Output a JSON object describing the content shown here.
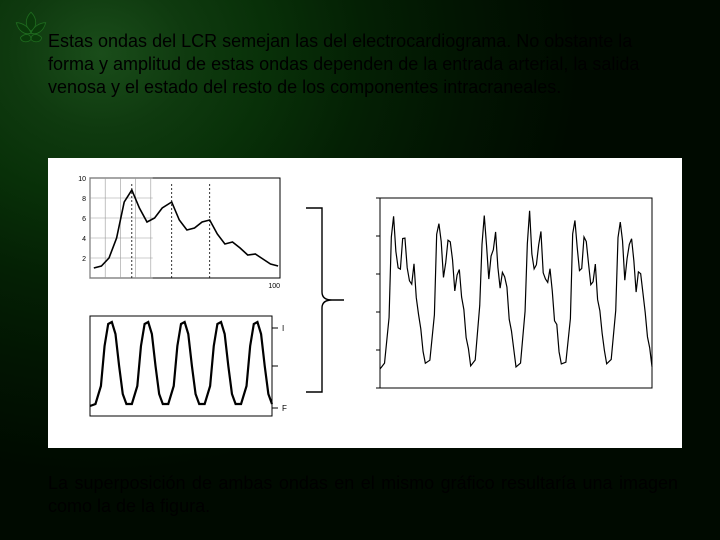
{
  "slide": {
    "background": {
      "gradient_center": "14% 10%",
      "stops": [
        "#1a4d1a",
        "#0f3a0f",
        "#083008",
        "#042004",
        "#021502",
        "#000a00"
      ]
    },
    "bullet_icon": {
      "type": "leaf-ornament",
      "fill": "#0a3a0a",
      "stroke": "#1f6b1f"
    },
    "text_top": "Estas ondas del LCR semejan las del electrocardiograma. No obstante la forma y amplitud de estas ondas dependen de la entrada arterial, la salida venosa y el estado del resto de los componentes intracraneales.",
    "text_bottom": "La superposición de ambas ondas en el mismo gráfico resultaría una imagen como la de la figura.",
    "text_color": "#000000",
    "font_size_pt": 14
  },
  "figure": {
    "background": "#ffffff",
    "stroke": "#000000",
    "grid_color": "#9a9a9a",
    "chart_top_left": {
      "type": "line",
      "description": "single ICP pulse wave with three descending peaks",
      "xlim": [
        0,
        100
      ],
      "ylim": [
        0,
        10
      ],
      "grid_x": [
        0,
        8,
        16,
        24,
        32
      ],
      "grid_y": [
        0,
        2,
        4,
        6,
        8,
        10
      ],
      "axis_labels_y": [
        "2",
        "4",
        "6",
        "8",
        "10"
      ],
      "axis_label_x_end": "100",
      "dashed_markers_x": [
        22,
        43,
        63
      ],
      "series": [
        {
          "color": "#000000",
          "line_width": 1.6,
          "points": [
            [
              2,
              1.0
            ],
            [
              6,
              1.2
            ],
            [
              10,
              2.0
            ],
            [
              14,
              4.0
            ],
            [
              18,
              7.6
            ],
            [
              22,
              8.8
            ],
            [
              26,
              7.0
            ],
            [
              30,
              5.6
            ],
            [
              34,
              6.0
            ],
            [
              38,
              7.0
            ],
            [
              43,
              7.6
            ],
            [
              47,
              5.8
            ],
            [
              51,
              4.8
            ],
            [
              55,
              5.0
            ],
            [
              59,
              5.6
            ],
            [
              63,
              5.8
            ],
            [
              67,
              4.4
            ],
            [
              71,
              3.4
            ],
            [
              75,
              3.6
            ],
            [
              79,
              3.0
            ],
            [
              83,
              2.3
            ],
            [
              87,
              2.4
            ],
            [
              91,
              1.9
            ],
            [
              95,
              1.4
            ],
            [
              99,
              1.2
            ]
          ]
        }
      ]
    },
    "chart_bottom_left": {
      "type": "line",
      "description": "arterial pressure - smooth periodic sinusoid ~5 cycles",
      "xlim": [
        0,
        100
      ],
      "ylim": [
        0,
        10
      ],
      "right_labels": [
        "I",
        "",
        "F"
      ],
      "series": [
        {
          "color": "#000000",
          "line_width": 2.2,
          "points": [
            [
              0,
              1.0
            ],
            [
              3,
              1.2
            ],
            [
              6,
              3.0
            ],
            [
              8,
              7.0
            ],
            [
              10,
              9.2
            ],
            [
              12,
              9.4
            ],
            [
              14,
              8.2
            ],
            [
              16,
              5.0
            ],
            [
              18,
              2.2
            ],
            [
              20,
              1.2
            ],
            [
              23,
              1.2
            ],
            [
              26,
              3.0
            ],
            [
              28,
              7.0
            ],
            [
              30,
              9.2
            ],
            [
              32,
              9.4
            ],
            [
              34,
              8.2
            ],
            [
              36,
              5.0
            ],
            [
              38,
              2.2
            ],
            [
              40,
              1.2
            ],
            [
              43,
              1.2
            ],
            [
              46,
              3.0
            ],
            [
              48,
              7.0
            ],
            [
              50,
              9.2
            ],
            [
              52,
              9.4
            ],
            [
              54,
              8.2
            ],
            [
              56,
              5.0
            ],
            [
              58,
              2.2
            ],
            [
              60,
              1.2
            ],
            [
              63,
              1.2
            ],
            [
              66,
              3.0
            ],
            [
              68,
              7.0
            ],
            [
              70,
              9.2
            ],
            [
              72,
              9.4
            ],
            [
              74,
              8.2
            ],
            [
              76,
              5.0
            ],
            [
              78,
              2.2
            ],
            [
              80,
              1.2
            ],
            [
              83,
              1.2
            ],
            [
              86,
              3.0
            ],
            [
              88,
              7.0
            ],
            [
              90,
              9.2
            ],
            [
              92,
              9.4
            ],
            [
              94,
              8.2
            ],
            [
              96,
              5.0
            ],
            [
              98,
              2.2
            ],
            [
              100,
              1.2
            ]
          ]
        }
      ]
    },
    "chart_right": {
      "type": "line",
      "description": "superposition: repeated ICP-like complex, ~6 cycles, with fine ripple",
      "xlim": [
        0,
        120
      ],
      "ylim": [
        0,
        10
      ],
      "axis_ticks_y": [
        0,
        2,
        4,
        6,
        8,
        10
      ],
      "cycle_template": [
        [
          0,
          1.0
        ],
        [
          2,
          1.4
        ],
        [
          4,
          4.0
        ],
        [
          5,
          7.8
        ],
        [
          6,
          9.0
        ],
        [
          7,
          7.4
        ],
        [
          8,
          6.0
        ],
        [
          9,
          6.6
        ],
        [
          10,
          7.6
        ],
        [
          11,
          8.0
        ],
        [
          12,
          6.4
        ],
        [
          13,
          5.4
        ],
        [
          14,
          5.8
        ],
        [
          15,
          6.2
        ],
        [
          16,
          5.0
        ],
        [
          17,
          3.8
        ],
        [
          18,
          3.0
        ],
        [
          19,
          2.0
        ],
        [
          20,
          1.2
        ]
      ],
      "num_cycles": 6,
      "cycle_width": 20,
      "ripple_amp": 0.35,
      "series_color": "#000000",
      "line_width": 1.2
    },
    "bracket": {
      "stroke": "#000000",
      "width": 1.4
    }
  }
}
